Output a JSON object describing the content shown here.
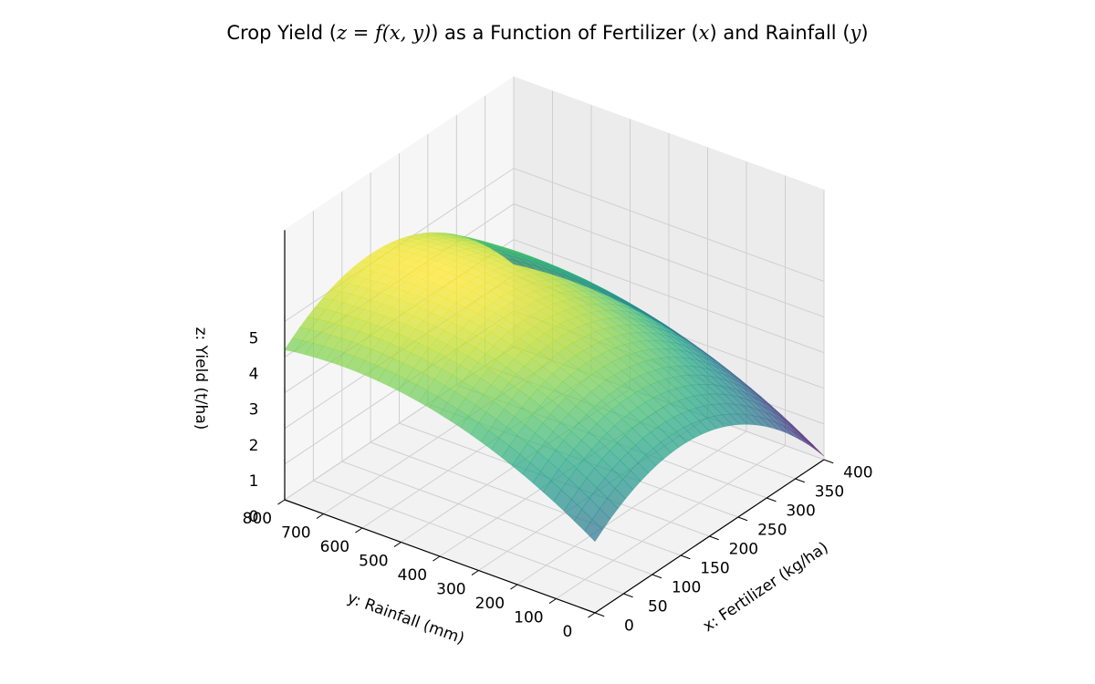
{
  "chart_data": {
    "type": "surface",
    "title_parts": {
      "prefix": "Crop Yield (",
      "formula": "z = f(x, y)",
      "middle1": ") as a Function of Fertilizer (",
      "xvar": "x",
      "middle2": ") and Rainfall (",
      "yvar": "y",
      "suffix": ")"
    },
    "xlabel": "x: Fertilizer (kg/ha)",
    "ylabel": "y: Rainfall (mm)",
    "zlabel": "z: Yield (t/ha)",
    "xlim": [
      0,
      400
    ],
    "ylim": [
      0,
      800
    ],
    "zlim": [
      0,
      5.6
    ],
    "x_ticks": [
      "0",
      "50",
      "100",
      "150",
      "200",
      "250",
      "300",
      "350",
      "400"
    ],
    "y_ticks": [
      "0",
      "100",
      "200",
      "300",
      "400",
      "500",
      "600",
      "700",
      "800"
    ],
    "z_ticks": [
      "0",
      "1",
      "2",
      "3",
      "4",
      "5"
    ],
    "x_tick_values": [
      0,
      50,
      100,
      150,
      200,
      250,
      300,
      350,
      400
    ],
    "y_tick_values": [
      0,
      100,
      200,
      300,
      400,
      500,
      600,
      700,
      800
    ],
    "z_tick_values": [
      0,
      1,
      2,
      3,
      4,
      5
    ],
    "colormap": "viridis",
    "surface_alpha": 0.7,
    "corner_values": [
      {
        "x": 0,
        "y": 0,
        "z": 2.0
      },
      {
        "x": 0,
        "y": 800,
        "z": 4.6
      },
      {
        "x": 400,
        "y": 0,
        "z": 0.1
      },
      {
        "x": 400,
        "y": 800,
        "z": 2.7
      }
    ],
    "peak": {
      "x": 150,
      "y": 650,
      "z": 5.4
    },
    "grid": true
  }
}
